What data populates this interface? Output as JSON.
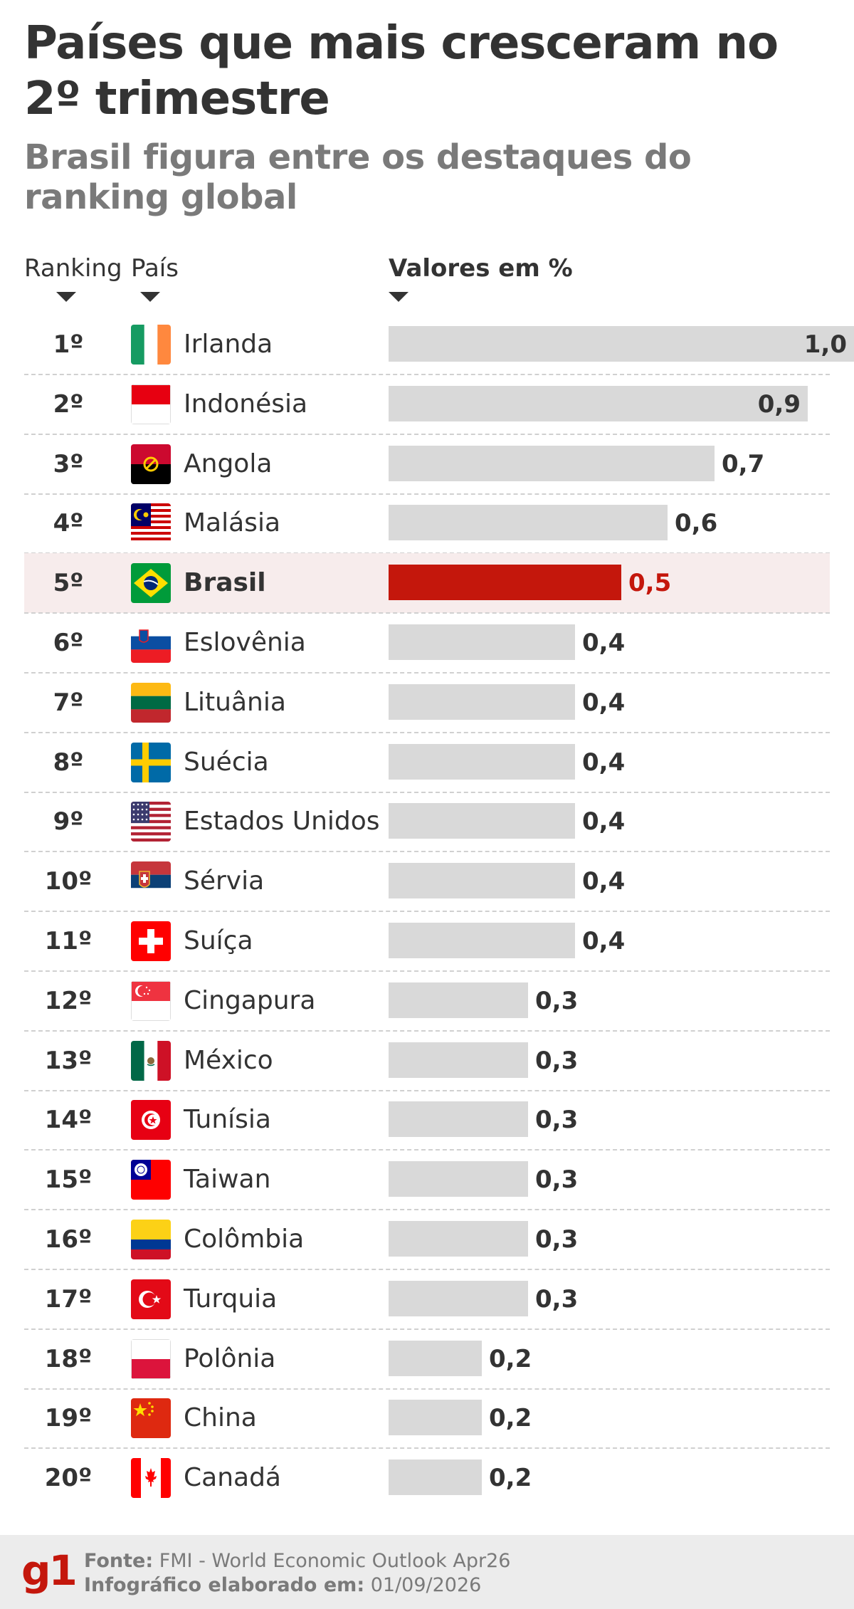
{
  "title": "Países que mais cresceram no 2º trimestre",
  "subtitle": "Brasil figura entre os destaques do ranking global",
  "columns": {
    "ranking": "Ranking",
    "country": "País",
    "values": "Valores em %"
  },
  "highlight_country": "Brasil",
  "colors": {
    "bar": "#d9d9d9",
    "highlight_bar": "#c4170c",
    "highlight_row": "#f7ecec",
    "brand": "#c4170c"
  },
  "chart_data": {
    "type": "bar",
    "orientation": "horizontal",
    "xlabel": "Valores em %",
    "xlim": [
      0,
      1.0
    ],
    "rows": [
      {
        "rank": "1º",
        "country": "Irlanda",
        "flag": "ireland-flag-icon",
        "value": 1.0,
        "label": "1,0"
      },
      {
        "rank": "2º",
        "country": "Indonésia",
        "flag": "indonesia-flag-icon",
        "value": 0.9,
        "label": "0,9"
      },
      {
        "rank": "3º",
        "country": "Angola",
        "flag": "angola-flag-icon",
        "value": 0.7,
        "label": "0,7"
      },
      {
        "rank": "4º",
        "country": "Malásia",
        "flag": "malaysia-flag-icon",
        "value": 0.6,
        "label": "0,6"
      },
      {
        "rank": "5º",
        "country": "Brasil",
        "flag": "brazil-flag-icon",
        "value": 0.5,
        "label": "0,5"
      },
      {
        "rank": "6º",
        "country": "Eslovênia",
        "flag": "slovenia-flag-icon",
        "value": 0.4,
        "label": "0,4"
      },
      {
        "rank": "7º",
        "country": "Lituânia",
        "flag": "lithuania-flag-icon",
        "value": 0.4,
        "label": "0,4"
      },
      {
        "rank": "8º",
        "country": "Suécia",
        "flag": "sweden-flag-icon",
        "value": 0.4,
        "label": "0,4"
      },
      {
        "rank": "9º",
        "country": "Estados Unidos",
        "flag": "usa-flag-icon",
        "value": 0.4,
        "label": "0,4"
      },
      {
        "rank": "10º",
        "country": "Sérvia",
        "flag": "serbia-flag-icon",
        "value": 0.4,
        "label": "0,4"
      },
      {
        "rank": "11º",
        "country": "Suíça",
        "flag": "switzerland-flag-icon",
        "value": 0.4,
        "label": "0,4"
      },
      {
        "rank": "12º",
        "country": "Cingapura",
        "flag": "singapore-flag-icon",
        "value": 0.3,
        "label": "0,3"
      },
      {
        "rank": "13º",
        "country": "México",
        "flag": "mexico-flag-icon",
        "value": 0.3,
        "label": "0,3"
      },
      {
        "rank": "14º",
        "country": "Tunísia",
        "flag": "tunisia-flag-icon",
        "value": 0.3,
        "label": "0,3"
      },
      {
        "rank": "15º",
        "country": "Taiwan",
        "flag": "taiwan-flag-icon",
        "value": 0.3,
        "label": "0,3"
      },
      {
        "rank": "16º",
        "country": "Colômbia",
        "flag": "colombia-flag-icon",
        "value": 0.3,
        "label": "0,3"
      },
      {
        "rank": "17º",
        "country": "Turquia",
        "flag": "turkey-flag-icon",
        "value": 0.3,
        "label": "0,3"
      },
      {
        "rank": "18º",
        "country": "Polônia",
        "flag": "poland-flag-icon",
        "value": 0.2,
        "label": "0,2"
      },
      {
        "rank": "19º",
        "country": "China",
        "flag": "china-flag-icon",
        "value": 0.2,
        "label": "0,2"
      },
      {
        "rank": "20º",
        "country": "Canadá",
        "flag": "canada-flag-icon",
        "value": 0.2,
        "label": "0,2"
      }
    ]
  },
  "footer": {
    "logo": "g1",
    "source_label": "Fonte:",
    "source_value": "FMI - World Economic Outlook Apr26",
    "date_label": "Infográfico elaborado em:",
    "date_value": "01/09/2026"
  }
}
